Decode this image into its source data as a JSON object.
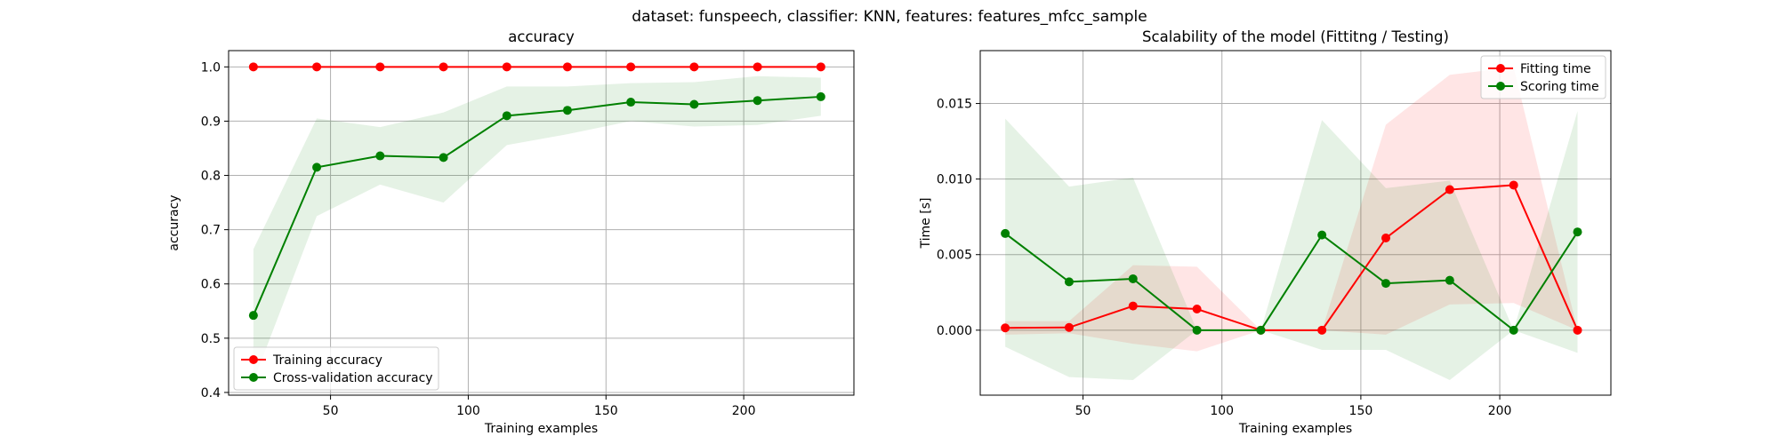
{
  "figure": {
    "suptitle": "dataset: funspeech, classifier: KNN, features: features_mfcc_sample"
  },
  "chart_data": [
    {
      "type": "line",
      "title": "accuracy",
      "xlabel": "Training examples",
      "ylabel": "accuracy",
      "xlim": [
        13,
        240
      ],
      "ylim": [
        0.395,
        1.03
      ],
      "xticks": [
        50,
        100,
        150,
        200
      ],
      "yticks": [
        0.4,
        0.5,
        0.6,
        0.7,
        0.8,
        0.9,
        1.0
      ],
      "ytick_labels": [
        "0.4",
        "0.5",
        "0.6",
        "0.7",
        "0.8",
        "0.9",
        "1.0"
      ],
      "grid": true,
      "legend_position": "lower-left",
      "x": [
        22,
        45,
        68,
        91,
        114,
        136,
        159,
        182,
        205,
        228
      ],
      "series": [
        {
          "name": "Training accuracy",
          "color": "#ff0000",
          "values": [
            1.0,
            1.0,
            1.0,
            1.0,
            1.0,
            1.0,
            1.0,
            1.0,
            1.0,
            1.0
          ],
          "band_lower": [
            1.0,
            1.0,
            1.0,
            1.0,
            1.0,
            1.0,
            1.0,
            1.0,
            1.0,
            1.0
          ],
          "band_upper": [
            1.0,
            1.0,
            1.0,
            1.0,
            1.0,
            1.0,
            1.0,
            1.0,
            1.0,
            1.0
          ],
          "band_color": "#ff0000"
        },
        {
          "name": "Cross-validation accuracy",
          "color": "#008000",
          "values": [
            0.542,
            0.815,
            0.836,
            0.833,
            0.91,
            0.92,
            0.935,
            0.931,
            0.938,
            0.945
          ],
          "band_lower": [
            0.42,
            0.725,
            0.783,
            0.75,
            0.856,
            0.876,
            0.9,
            0.89,
            0.893,
            0.91
          ],
          "band_upper": [
            0.664,
            0.905,
            0.889,
            0.916,
            0.964,
            0.964,
            0.97,
            0.972,
            0.983,
            0.98
          ],
          "band_color": "#008000"
        }
      ]
    },
    {
      "type": "line",
      "title": "Scalability of the model (Fittitng / Testing)",
      "xlabel": "Training examples",
      "ylabel": "Time [s]",
      "xlim": [
        13,
        240
      ],
      "ylim": [
        -0.0043,
        0.0185
      ],
      "xticks": [
        50,
        100,
        150,
        200
      ],
      "yticks": [
        0.0,
        0.005,
        0.01,
        0.015
      ],
      "ytick_labels": [
        "0.000",
        "0.005",
        "0.010",
        "0.015"
      ],
      "grid": true,
      "legend_position": "top-right",
      "x": [
        22,
        45,
        68,
        91,
        114,
        136,
        159,
        182,
        205,
        228
      ],
      "series": [
        {
          "name": "Fitting time",
          "color": "#ff0000",
          "values": [
            0.00015,
            0.00018,
            0.0016,
            0.0014,
            0.0,
            0.0,
            0.0061,
            0.0093,
            0.0096,
            0.0
          ],
          "band_lower": [
            -0.0003,
            -0.0002,
            -0.0009,
            -0.0014,
            0.0,
            0.0,
            -0.0003,
            0.0017,
            0.0018,
            0.0
          ],
          "band_upper": [
            0.0006,
            0.0006,
            0.0043,
            0.0042,
            0.0,
            0.0,
            0.0136,
            0.0169,
            0.0174,
            0.0
          ],
          "band_color": "#ff0000"
        },
        {
          "name": "Scoring time",
          "color": "#008000",
          "values": [
            0.0064,
            0.0032,
            0.0034,
            0.0,
            0.0,
            0.0063,
            0.0031,
            0.0033,
            0.0,
            0.0065
          ],
          "band_lower": [
            -0.0011,
            -0.0031,
            -0.0033,
            0.0,
            0.0,
            -0.0013,
            -0.0013,
            -0.0033,
            0.0,
            -0.0015
          ],
          "band_upper": [
            0.014,
            0.0095,
            0.0101,
            0.0,
            0.0,
            0.0139,
            0.0094,
            0.0099,
            0.0,
            0.0145
          ],
          "band_color": "#008000"
        }
      ]
    }
  ]
}
